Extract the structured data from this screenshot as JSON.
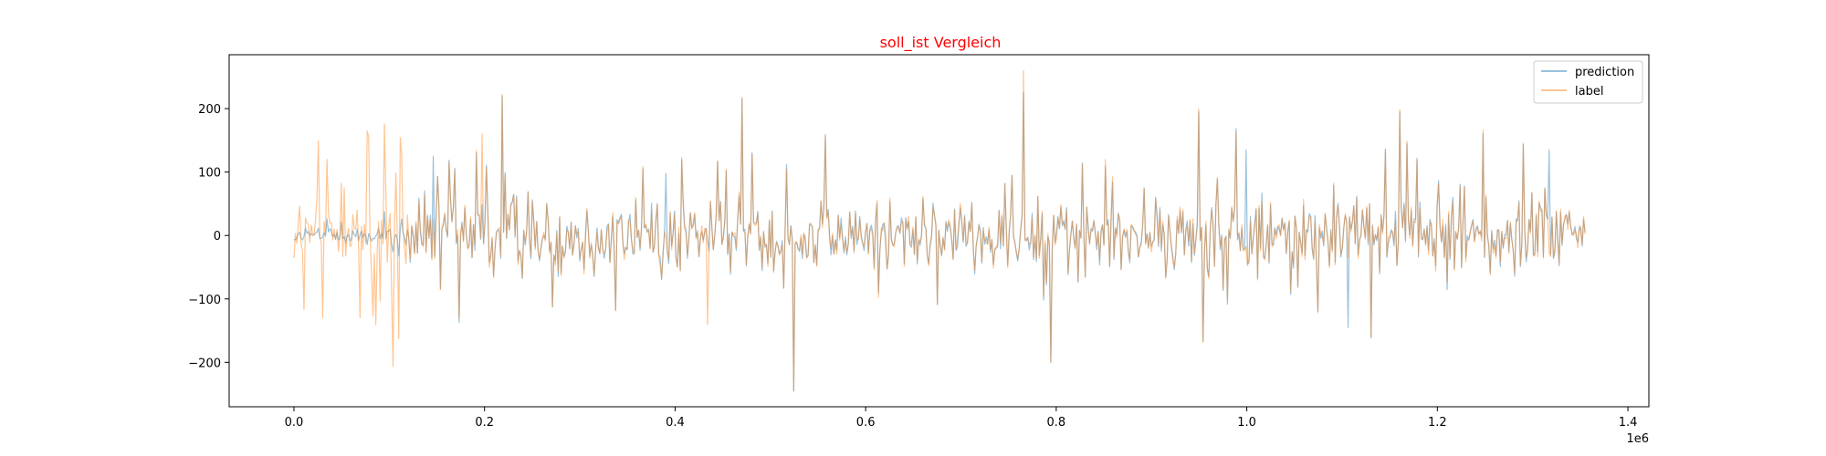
{
  "chart_data": {
    "type": "line",
    "title": "soll_ist Vergleich",
    "title_color": "#ff0000",
    "xlabel": "",
    "ylabel": "",
    "x_offset_label": "1e6",
    "xlim": [
      -0.068,
      1.422
    ],
    "ylim": [
      -270,
      285
    ],
    "x_ticks": [
      0.0,
      0.2,
      0.4,
      0.6,
      0.8,
      1.0,
      1.2,
      1.4
    ],
    "x_tick_labels": [
      "0.0",
      "0.2",
      "0.4",
      "0.6",
      "0.8",
      "1.0",
      "1.2",
      "1.4"
    ],
    "y_ticks": [
      -200,
      -100,
      0,
      100,
      200
    ],
    "y_tick_labels": [
      "−200",
      "−100",
      "0",
      "100",
      "200"
    ],
    "grid": false,
    "legend_position": "top-right",
    "x_range": [
      0.0,
      1.355
    ],
    "num_points": 900,
    "seed": 12345,
    "series": [
      {
        "name": "prediction",
        "color": "#1f77b4",
        "opacity": 0.45,
        "peaks": [
          [
            0.146,
            125
          ],
          [
            0.218,
            220
          ],
          [
            0.39,
            98
          ],
          [
            0.47,
            215
          ],
          [
            0.765,
            225
          ],
          [
            0.95,
            195
          ],
          [
            1.0,
            135
          ],
          [
            1.16,
            195
          ],
          [
            1.318,
            135
          ],
          [
            1.107,
            -145
          ],
          [
            0.524,
            -245
          ],
          [
            0.795,
            -200
          ]
        ]
      },
      {
        "name": "label",
        "color": "#ff7f0e",
        "opacity": 0.45,
        "peaks": [
          [
            0.077,
            165
          ],
          [
            0.197,
            160
          ],
          [
            0.218,
            222
          ],
          [
            0.47,
            218
          ],
          [
            0.765,
            260
          ],
          [
            0.95,
            200
          ],
          [
            1.16,
            198
          ],
          [
            0.524,
            -245
          ],
          [
            0.795,
            -200
          ],
          [
            0.03,
            -130
          ],
          [
            0.07,
            -130
          ],
          [
            0.434,
            -140
          ]
        ]
      }
    ]
  }
}
